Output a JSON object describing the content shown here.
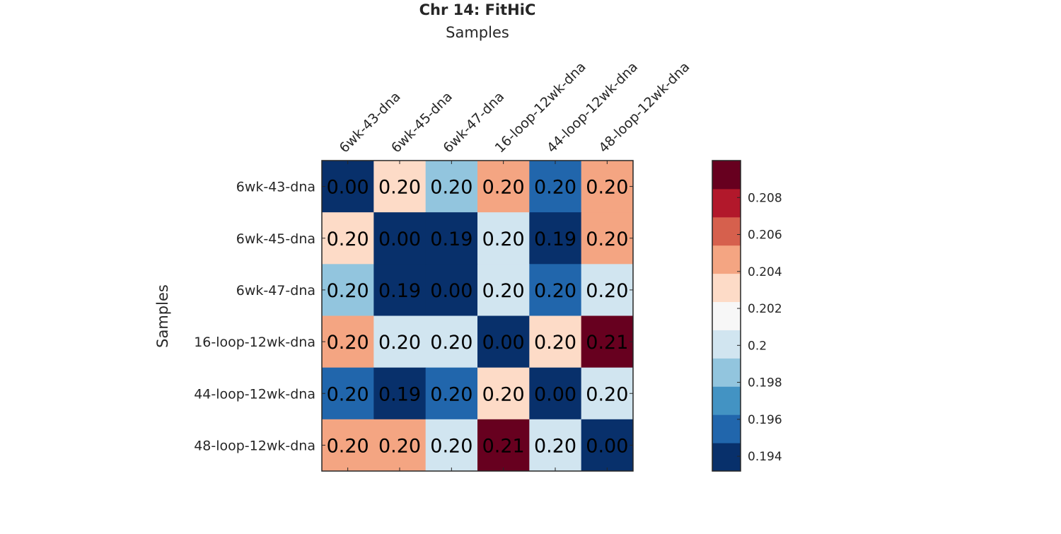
{
  "chart_data": {
    "type": "heatmap",
    "title": "Chr 14: FitHiC",
    "xlabel": "Samples",
    "ylabel": "Samples",
    "x_categories": [
      "6wk-43-dna",
      "6wk-45-dna",
      "6wk-47-dna",
      "16-loop-12wk-dna",
      "44-loop-12wk-dna",
      "48-loop-12wk-dna"
    ],
    "y_categories": [
      "6wk-43-dna",
      "6wk-45-dna",
      "6wk-47-dna",
      "16-loop-12wk-dna",
      "44-loop-12wk-dna",
      "48-loop-12wk-dna"
    ],
    "values": [
      [
        0.0,
        0.2032,
        0.1985,
        0.2045,
        0.1955,
        0.2045
      ],
      [
        0.2032,
        0.0,
        0.1935,
        0.2,
        0.1935,
        0.2045
      ],
      [
        0.1985,
        0.1935,
        0.0,
        0.2,
        0.1955,
        0.2
      ],
      [
        0.2045,
        0.2,
        0.2,
        0.0,
        0.2032,
        0.2095
      ],
      [
        0.1955,
        0.1935,
        0.1955,
        0.2032,
        0.0,
        0.2
      ],
      [
        0.2045,
        0.2045,
        0.2,
        0.2095,
        0.2,
        0.0
      ]
    ],
    "cell_labels": [
      [
        "0.00",
        "0.20",
        "0.20",
        "0.20",
        "0.20",
        "0.20"
      ],
      [
        "0.20",
        "0.00",
        "0.19",
        "0.20",
        "0.19",
        "0.20"
      ],
      [
        "0.20",
        "0.19",
        "0.00",
        "0.20",
        "0.20",
        "0.20"
      ],
      [
        "0.20",
        "0.20",
        "0.20",
        "0.00",
        "0.20",
        "0.21"
      ],
      [
        "0.20",
        "0.19",
        "0.20",
        "0.20",
        "0.00",
        "0.20"
      ],
      [
        "0.20",
        "0.20",
        "0.20",
        "0.21",
        "0.20",
        "0.00"
      ]
    ],
    "colorbar": {
      "range": [
        0.1932,
        0.21
      ],
      "ticks": [
        0.194,
        0.196,
        0.198,
        0.2,
        0.202,
        0.204,
        0.206,
        0.208
      ],
      "tick_labels": [
        "0.194",
        "0.196",
        "0.198",
        "0.2",
        "0.202",
        "0.204",
        "0.206",
        "0.208"
      ],
      "colors": [
        "#08306b",
        "#2166ac",
        "#4393c3",
        "#92c5de",
        "#d1e5f0",
        "#f7f7f7",
        "#fddbc7",
        "#f4a582",
        "#d6604d",
        "#b2182b",
        "#67001f"
      ]
    }
  }
}
